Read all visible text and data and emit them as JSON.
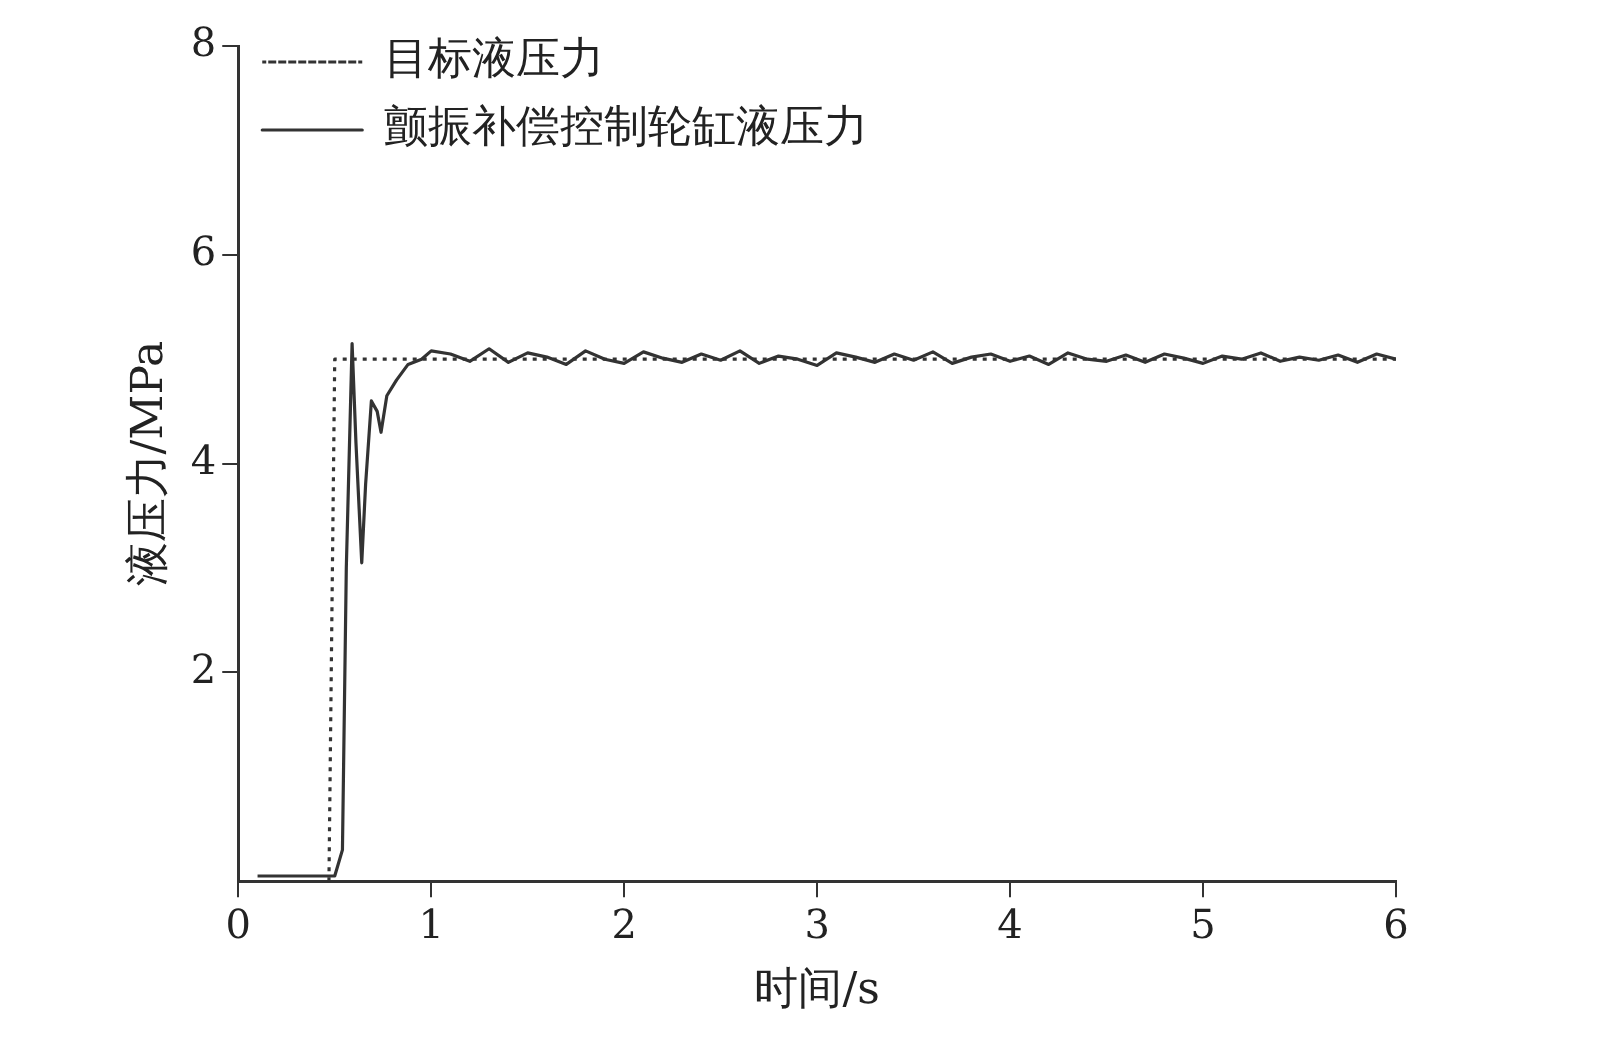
{
  "chart_data": {
    "type": "line",
    "xlabel": "时间/s",
    "ylabel": "液压力/MPa",
    "xlim": [
      0,
      6
    ],
    "xticks": [
      0,
      1,
      2,
      3,
      4,
      5,
      6
    ],
    "ylim": [
      0,
      8
    ],
    "yticks": [
      2,
      4,
      6,
      8
    ],
    "grid": false,
    "legend": "top left",
    "marker": "none",
    "series": [
      {
        "name": "目标液压力",
        "color": "#333333",
        "line_style": "dotted",
        "x": [
          0.47,
          0.5,
          6
        ],
        "values": [
          0,
          5,
          5
        ]
      },
      {
        "name": "颤振补偿控制轮缸液压力",
        "color": "#333333",
        "line_style": "solid",
        "x": [
          0.1,
          0.5,
          0.54,
          0.56,
          0.59,
          0.61,
          0.64,
          0.66,
          0.69,
          0.72,
          0.74,
          0.77,
          0.82,
          0.88,
          0.95,
          1.0,
          1.1,
          1.2,
          1.3,
          1.4,
          1.5,
          1.6,
          1.7,
          1.8,
          1.9,
          2.0,
          2.1,
          2.2,
          2.3,
          2.4,
          2.5,
          2.6,
          2.7,
          2.8,
          2.9,
          3.0,
          3.1,
          3.2,
          3.3,
          3.4,
          3.5,
          3.6,
          3.7,
          3.8,
          3.9,
          4.0,
          4.1,
          4.2,
          4.3,
          4.4,
          4.5,
          4.6,
          4.7,
          4.8,
          4.9,
          5.0,
          5.1,
          5.2,
          5.3,
          5.4,
          5.5,
          5.6,
          5.7,
          5.8,
          5.9,
          6.0
        ],
        "values": [
          0.05,
          0.05,
          0.3,
          3.0,
          5.15,
          4.2,
          3.05,
          3.8,
          4.6,
          4.5,
          4.3,
          4.65,
          4.8,
          4.95,
          5.0,
          5.08,
          5.05,
          4.98,
          5.1,
          4.97,
          5.06,
          5.02,
          4.95,
          5.08,
          5.0,
          4.96,
          5.07,
          5.01,
          4.97,
          5.05,
          4.99,
          5.08,
          4.96,
          5.03,
          5.0,
          4.94,
          5.06,
          5.02,
          4.97,
          5.05,
          4.99,
          5.07,
          4.96,
          5.02,
          5.05,
          4.98,
          5.03,
          4.95,
          5.06,
          5.0,
          4.98,
          5.04,
          4.97,
          5.05,
          5.01,
          4.96,
          5.03,
          5.0,
          5.06,
          4.98,
          5.02,
          4.99,
          5.04,
          4.97,
          5.05,
          5.0
        ]
      }
    ]
  }
}
